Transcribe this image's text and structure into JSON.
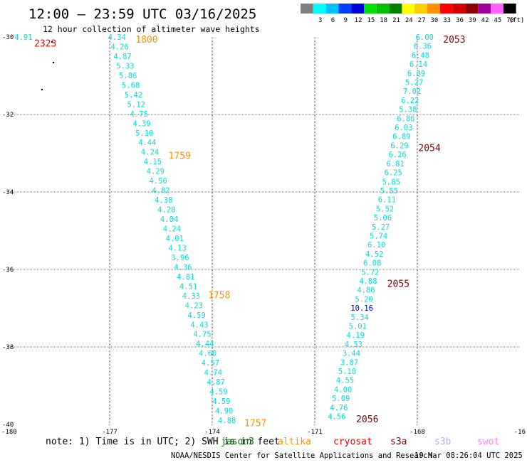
{
  "header": {
    "title": "12:00 — 23:59 UTC 03/16/2025",
    "subtitle": "12 hour collection of altimeter wave heights"
  },
  "color_scale": {
    "unit": "(ft)",
    "bins": [
      {
        "label": "",
        "color": "#808080"
      },
      {
        "label": "3",
        "color": "#00ffff"
      },
      {
        "label": "6",
        "color": "#00c0ff"
      },
      {
        "label": "9",
        "color": "#0040ff"
      },
      {
        "label": "12",
        "color": "#0000d8"
      },
      {
        "label": "15",
        "color": "#00e000"
      },
      {
        "label": "18",
        "color": "#00c000"
      },
      {
        "label": "21",
        "color": "#008000"
      },
      {
        "label": "24",
        "color": "#ffff00"
      },
      {
        "label": "27",
        "color": "#ffd000"
      },
      {
        "label": "30",
        "color": "#ff9000"
      },
      {
        "label": "33",
        "color": "#ff0000"
      },
      {
        "label": "36",
        "color": "#d00000"
      },
      {
        "label": "39",
        "color": "#900000"
      },
      {
        "label": "42",
        "color": "#a000a0"
      },
      {
        "label": "45",
        "color": "#ff60ff"
      },
      {
        "label": "70",
        "color": "#000000"
      }
    ]
  },
  "map": {
    "lon_range": [
      -180,
      -166
    ],
    "lat_range": [
      -40,
      -30
    ],
    "lon_ticks": [
      "-180",
      "-177",
      "-174",
      "-171",
      "-168",
      "-16"
    ],
    "lat_ticks": [
      "-30",
      "-32",
      "-34",
      "-36",
      "-38",
      "-40"
    ],
    "grid": true
  },
  "passes": [
    {
      "satellite": "altika",
      "color": "#ff9000",
      "label_color": "#00dddd",
      "times": [
        {
          "time": "1800",
          "lat": -30.0
        },
        {
          "time": "1759",
          "lat": -33.0
        },
        {
          "time": "1758",
          "lat": -36.6
        },
        {
          "time": "1757",
          "lat": -39.9
        }
      ],
      "track": {
        "start": {
          "lon": -177.0,
          "lat": -30.0
        },
        "end": {
          "lon": -174.0,
          "lat": -40.0
        }
      },
      "values": [
        "4.34",
        "4.26",
        "4.87",
        "5.33",
        "5.86",
        "5.68",
        "5.42",
        "5.12",
        "4.75",
        "4.39",
        "5.10",
        "4.44",
        "4.24",
        "4.15",
        "4.29",
        "4.56",
        "4.82",
        "4.38",
        "4.28",
        "4.04",
        "4.24",
        "4.01",
        "4.13",
        "3.96",
        "4.36",
        "4.81",
        "4.51",
        "4.33",
        "4.23",
        "4.59",
        "4.43",
        "4.75",
        "4.44",
        "4.60",
        "4.57",
        "4.74",
        "4.87",
        "4.59",
        "4.59",
        "4.90",
        "4.88"
      ]
    },
    {
      "satellite": "s3a",
      "color": "#800000",
      "label_color": "#00dddd",
      "times": [
        {
          "time": "2053",
          "lat": -30.0
        },
        {
          "time": "2054",
          "lat": -32.8
        },
        {
          "time": "2055",
          "lat": -36.3
        },
        {
          "time": "2056",
          "lat": -39.8
        }
      ],
      "track": {
        "start": {
          "lon": -168.6,
          "lat": -30.0
        },
        "end": {
          "lon": -171.0,
          "lat": -39.9
        }
      },
      "values": [
        "6.00",
        "6.36",
        "6.48",
        "6.14",
        "6.09",
        "5.27",
        "7.02",
        "6.22",
        "5.38",
        "6.86",
        "6.03",
        "6.89",
        "6.29",
        "6.26",
        "6.81",
        "6.25",
        "5.85",
        "5.55",
        "6.11",
        "5.52",
        "5.06",
        "5.27",
        "5.74",
        "6.10",
        "4.52",
        "6.08",
        "5.72",
        "4.88",
        "4.86",
        "5.20",
        "10.16",
        "5.34",
        "5.01",
        "4.19",
        "4.53",
        "3.44",
        "3.87",
        "5.10",
        "4.55",
        "4.00",
        "5.09",
        "4.76",
        "4.56"
      ],
      "highlight": {
        "index": 30,
        "color": "#0000d8"
      }
    },
    {
      "satellite": "cryosat",
      "color": "#ff0000",
      "label_color": "#00dddd",
      "times": [
        {
          "time": "2323",
          "lat": -30.1
        }
      ],
      "track": {
        "start": {
          "lon": -179.8,
          "lat": -30.0
        },
        "end": {
          "lon": -179.8,
          "lat": -30.0
        }
      },
      "values": [
        "4.91"
      ]
    }
  ],
  "footer": {
    "note": "note:  1) Time is in UTC; 2) SWH is in feet",
    "satellites": [
      {
        "name": "jason3",
        "color": "#008000"
      },
      {
        "name": "altika",
        "color": "#ff9000"
      },
      {
        "name": "cryosat",
        "color": "#ff0000"
      },
      {
        "name": "s3a",
        "color": "#800000"
      },
      {
        "name": "s3b",
        "color": "#c0a0ff"
      },
      {
        "name": "swot",
        "color": "#ff80ff"
      }
    ],
    "credit": "NOAA/NESDIS Center for Satellite Applications and Research",
    "generated": "19 Mar 08:26:04 UTC 2025"
  }
}
